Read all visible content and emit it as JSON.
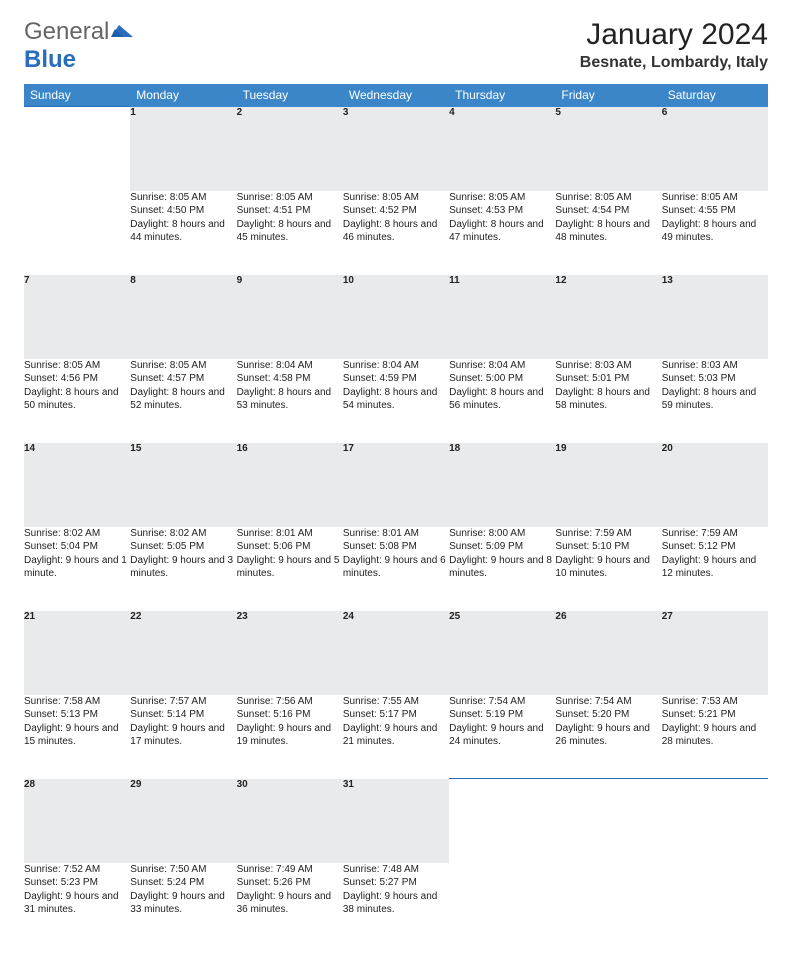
{
  "logo": {
    "general": "General",
    "blue": "Blue"
  },
  "title": "January 2024",
  "location": "Besnate, Lombardy, Italy",
  "colors": {
    "header_bg": "#3b86c9",
    "header_text": "#ffffff",
    "daynum_bg": "#e9eaec",
    "border": "#2a6dbf"
  },
  "weekdays": [
    "Sunday",
    "Monday",
    "Tuesday",
    "Wednesday",
    "Thursday",
    "Friday",
    "Saturday"
  ],
  "weeks": [
    [
      null,
      {
        "n": "1",
        "sr": "8:05 AM",
        "ss": "4:50 PM",
        "dl": "8 hours and 44 minutes."
      },
      {
        "n": "2",
        "sr": "8:05 AM",
        "ss": "4:51 PM",
        "dl": "8 hours and 45 minutes."
      },
      {
        "n": "3",
        "sr": "8:05 AM",
        "ss": "4:52 PM",
        "dl": "8 hours and 46 minutes."
      },
      {
        "n": "4",
        "sr": "8:05 AM",
        "ss": "4:53 PM",
        "dl": "8 hours and 47 minutes."
      },
      {
        "n": "5",
        "sr": "8:05 AM",
        "ss": "4:54 PM",
        "dl": "8 hours and 48 minutes."
      },
      {
        "n": "6",
        "sr": "8:05 AM",
        "ss": "4:55 PM",
        "dl": "8 hours and 49 minutes."
      }
    ],
    [
      {
        "n": "7",
        "sr": "8:05 AM",
        "ss": "4:56 PM",
        "dl": "8 hours and 50 minutes."
      },
      {
        "n": "8",
        "sr": "8:05 AM",
        "ss": "4:57 PM",
        "dl": "8 hours and 52 minutes."
      },
      {
        "n": "9",
        "sr": "8:04 AM",
        "ss": "4:58 PM",
        "dl": "8 hours and 53 minutes."
      },
      {
        "n": "10",
        "sr": "8:04 AM",
        "ss": "4:59 PM",
        "dl": "8 hours and 54 minutes."
      },
      {
        "n": "11",
        "sr": "8:04 AM",
        "ss": "5:00 PM",
        "dl": "8 hours and 56 minutes."
      },
      {
        "n": "12",
        "sr": "8:03 AM",
        "ss": "5:01 PM",
        "dl": "8 hours and 58 minutes."
      },
      {
        "n": "13",
        "sr": "8:03 AM",
        "ss": "5:03 PM",
        "dl": "8 hours and 59 minutes."
      }
    ],
    [
      {
        "n": "14",
        "sr": "8:02 AM",
        "ss": "5:04 PM",
        "dl": "9 hours and 1 minute."
      },
      {
        "n": "15",
        "sr": "8:02 AM",
        "ss": "5:05 PM",
        "dl": "9 hours and 3 minutes."
      },
      {
        "n": "16",
        "sr": "8:01 AM",
        "ss": "5:06 PM",
        "dl": "9 hours and 5 minutes."
      },
      {
        "n": "17",
        "sr": "8:01 AM",
        "ss": "5:08 PM",
        "dl": "9 hours and 6 minutes."
      },
      {
        "n": "18",
        "sr": "8:00 AM",
        "ss": "5:09 PM",
        "dl": "9 hours and 8 minutes."
      },
      {
        "n": "19",
        "sr": "7:59 AM",
        "ss": "5:10 PM",
        "dl": "9 hours and 10 minutes."
      },
      {
        "n": "20",
        "sr": "7:59 AM",
        "ss": "5:12 PM",
        "dl": "9 hours and 12 minutes."
      }
    ],
    [
      {
        "n": "21",
        "sr": "7:58 AM",
        "ss": "5:13 PM",
        "dl": "9 hours and 15 minutes."
      },
      {
        "n": "22",
        "sr": "7:57 AM",
        "ss": "5:14 PM",
        "dl": "9 hours and 17 minutes."
      },
      {
        "n": "23",
        "sr": "7:56 AM",
        "ss": "5:16 PM",
        "dl": "9 hours and 19 minutes."
      },
      {
        "n": "24",
        "sr": "7:55 AM",
        "ss": "5:17 PM",
        "dl": "9 hours and 21 minutes."
      },
      {
        "n": "25",
        "sr": "7:54 AM",
        "ss": "5:19 PM",
        "dl": "9 hours and 24 minutes."
      },
      {
        "n": "26",
        "sr": "7:54 AM",
        "ss": "5:20 PM",
        "dl": "9 hours and 26 minutes."
      },
      {
        "n": "27",
        "sr": "7:53 AM",
        "ss": "5:21 PM",
        "dl": "9 hours and 28 minutes."
      }
    ],
    [
      {
        "n": "28",
        "sr": "7:52 AM",
        "ss": "5:23 PM",
        "dl": "9 hours and 31 minutes."
      },
      {
        "n": "29",
        "sr": "7:50 AM",
        "ss": "5:24 PM",
        "dl": "9 hours and 33 minutes."
      },
      {
        "n": "30",
        "sr": "7:49 AM",
        "ss": "5:26 PM",
        "dl": "9 hours and 36 minutes."
      },
      {
        "n": "31",
        "sr": "7:48 AM",
        "ss": "5:27 PM",
        "dl": "9 hours and 38 minutes."
      },
      null,
      null,
      null
    ]
  ],
  "labels": {
    "sunrise": "Sunrise: ",
    "sunset": "Sunset: ",
    "daylight": "Daylight: "
  }
}
